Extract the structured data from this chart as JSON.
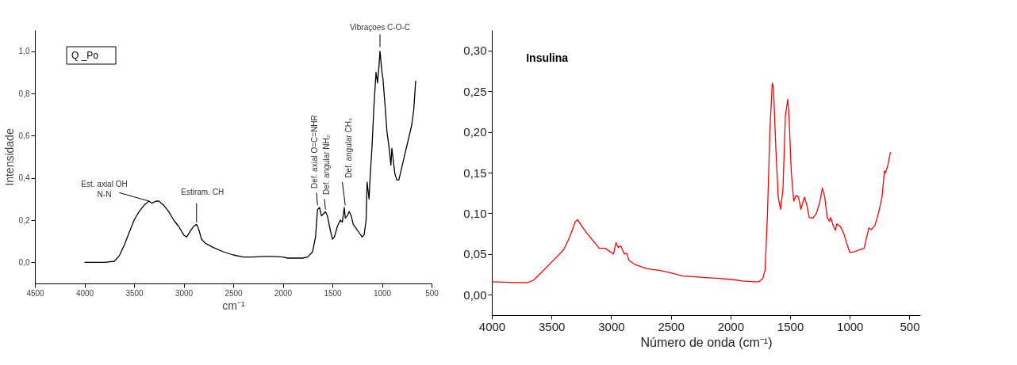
{
  "chart_data": [
    {
      "type": "line",
      "xlabel": "cm⁻¹",
      "ylabel": "Intensidade",
      "xlim": [
        4500,
        500
      ],
      "ylim": [
        -0.1,
        1.1
      ],
      "xticks": [
        4500,
        4000,
        3500,
        3000,
        2500,
        2000,
        1500,
        1000,
        500
      ],
      "yticks": [
        {
          "value": 0,
          "label": "0,0"
        },
        {
          "value": 0.2,
          "label": "0,2"
        },
        {
          "value": 0.4,
          "label": "0,4"
        },
        {
          "value": 0.6,
          "label": "0,6"
        },
        {
          "value": 0.8,
          "label": "0,8"
        },
        {
          "value": 1.0,
          "label": "1,0"
        }
      ],
      "grid": false,
      "legend": "top left",
      "marker": "none",
      "line_style": "solid",
      "series": [
        {
          "name": "Q _Po",
          "color": "#000000",
          "x": [
            4000,
            3900,
            3800,
            3700,
            3650,
            3600,
            3550,
            3500,
            3450,
            3400,
            3350,
            3320,
            3280,
            3250,
            3200,
            3150,
            3100,
            3050,
            3000,
            2970,
            2930,
            2900,
            2870,
            2850,
            2820,
            2780,
            2700,
            2600,
            2500,
            2400,
            2300,
            2200,
            2100,
            2000,
            1950,
            1800,
            1750,
            1700,
            1670,
            1650,
            1630,
            1610,
            1590,
            1570,
            1550,
            1520,
            1500,
            1480,
            1450,
            1420,
            1400,
            1380,
            1370,
            1350,
            1330,
            1310,
            1290,
            1260,
            1230,
            1200,
            1180,
            1160,
            1150,
            1130,
            1120,
            1100,
            1080,
            1060,
            1045,
            1030,
            1020,
            1000,
            990,
            970,
            950,
            930,
            910,
            900,
            890,
            870,
            850,
            830,
            800,
            750,
            700,
            680,
            660
          ],
          "values": [
            0.0,
            0.0,
            0.0,
            0.005,
            0.03,
            0.08,
            0.14,
            0.2,
            0.24,
            0.27,
            0.29,
            0.28,
            0.29,
            0.29,
            0.27,
            0.24,
            0.2,
            0.17,
            0.13,
            0.12,
            0.15,
            0.17,
            0.18,
            0.16,
            0.11,
            0.09,
            0.07,
            0.05,
            0.035,
            0.025,
            0.025,
            0.028,
            0.028,
            0.025,
            0.02,
            0.02,
            0.025,
            0.05,
            0.12,
            0.25,
            0.26,
            0.22,
            0.23,
            0.24,
            0.22,
            0.15,
            0.11,
            0.12,
            0.17,
            0.2,
            0.19,
            0.26,
            0.21,
            0.22,
            0.24,
            0.22,
            0.18,
            0.16,
            0.14,
            0.12,
            0.13,
            0.2,
            0.38,
            0.3,
            0.4,
            0.55,
            0.75,
            0.9,
            0.85,
            0.93,
            1.0,
            0.9,
            0.87,
            0.75,
            0.62,
            0.55,
            0.46,
            0.54,
            0.5,
            0.42,
            0.39,
            0.39,
            0.45,
            0.55,
            0.65,
            0.72,
            0.86
          ]
        }
      ],
      "annotations": [
        {
          "text": "Est. axial OH\nN-N",
          "x": 3350,
          "y": 0.29
        },
        {
          "text": "Estiram. CH",
          "x": 2870,
          "y": 0.19
        },
        {
          "text": "Def. axial O=C=NHR",
          "x": 1650,
          "y": 0.27
        },
        {
          "text": "Def. angular NH₂",
          "x": 1570,
          "y": 0.25
        },
        {
          "text": "Def. angular CH₃",
          "x": 1370,
          "y": 0.27
        },
        {
          "text": "Vibraçoes C-O-C",
          "x": 1020,
          "y": 1.02
        }
      ]
    },
    {
      "type": "line",
      "xlabel": "Número de onda (cm⁻¹)",
      "xlim": [
        4000,
        410
      ],
      "ylim": [
        -0.025,
        0.325
      ],
      "xticks": [
        4000,
        3500,
        3000,
        2500,
        2000,
        1500,
        1000,
        500
      ],
      "yticks": [
        {
          "value": 0,
          "label": "0,00"
        },
        {
          "value": 0.05,
          "label": "0,05"
        },
        {
          "value": 0.1,
          "label": "0,10"
        },
        {
          "value": 0.15,
          "label": "0,15"
        },
        {
          "value": 0.2,
          "label": "0,20"
        },
        {
          "value": 0.25,
          "label": "0,25"
        },
        {
          "value": 0.3,
          "label": "0,30"
        }
      ],
      "grid": false,
      "legend": "top left",
      "marker": "none",
      "line_style": "solid",
      "series": [
        {
          "name": "Insulina",
          "color": "#ff0000",
          "x": [
            4000,
            3800,
            3700,
            3650,
            3600,
            3500,
            3400,
            3350,
            3300,
            3280,
            3250,
            3200,
            3150,
            3100,
            3050,
            3000,
            2980,
            2960,
            2940,
            2920,
            2890,
            2870,
            2850,
            2800,
            2700,
            2600,
            2500,
            2400,
            2200,
            2100,
            2000,
            1900,
            1800,
            1760,
            1730,
            1710,
            1690,
            1670,
            1650,
            1640,
            1620,
            1600,
            1580,
            1560,
            1540,
            1520,
            1510,
            1490,
            1470,
            1450,
            1430,
            1410,
            1390,
            1380,
            1360,
            1340,
            1310,
            1280,
            1250,
            1230,
            1210,
            1190,
            1170,
            1160,
            1140,
            1120,
            1110,
            1080,
            1050,
            1030,
            1000,
            960,
            920,
            880,
            860,
            840,
            820,
            790,
            760,
            730,
            710,
            700,
            680,
            660
          ],
          "values": [
            0.016,
            0.015,
            0.015,
            0.018,
            0.025,
            0.04,
            0.055,
            0.07,
            0.09,
            0.092,
            0.085,
            0.075,
            0.066,
            0.057,
            0.057,
            0.052,
            0.05,
            0.064,
            0.058,
            0.06,
            0.05,
            0.051,
            0.042,
            0.037,
            0.032,
            0.03,
            0.027,
            0.023,
            0.021,
            0.02,
            0.019,
            0.017,
            0.016,
            0.016,
            0.02,
            0.03,
            0.1,
            0.2,
            0.26,
            0.255,
            0.18,
            0.12,
            0.105,
            0.13,
            0.22,
            0.24,
            0.22,
            0.15,
            0.115,
            0.122,
            0.12,
            0.105,
            0.115,
            0.12,
            0.11,
            0.095,
            0.094,
            0.1,
            0.115,
            0.131,
            0.12,
            0.095,
            0.09,
            0.095,
            0.085,
            0.079,
            0.087,
            0.084,
            0.075,
            0.065,
            0.052,
            0.053,
            0.055,
            0.057,
            0.07,
            0.082,
            0.08,
            0.085,
            0.1,
            0.12,
            0.152,
            0.15,
            0.16,
            0.175
          ]
        }
      ]
    }
  ]
}
